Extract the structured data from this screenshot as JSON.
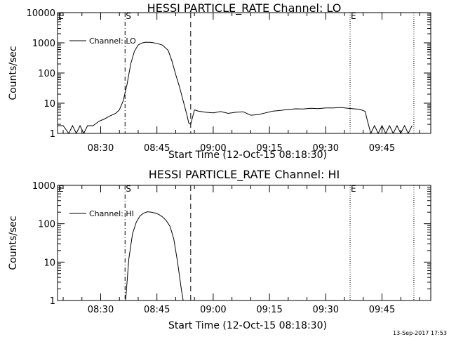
{
  "timestamp": "13-Sep-2017 17:53",
  "chart_data": [
    {
      "type": "line",
      "title": "HESSI PARTICLE_RATE Channel: LO",
      "xlabel": "Start Time (12-Oct-15 08:18:30)",
      "ylabel": "Counts/sec",
      "yscale": "log",
      "ylim": [
        1,
        10000
      ],
      "ytick_labels": [
        "1",
        "10",
        "100",
        "1000",
        "10000"
      ],
      "xlim": [
        "08:18:30",
        "09:58:00"
      ],
      "xtick_labels": [
        "08:30",
        "08:45",
        "09:00",
        "09:15",
        "09:30",
        "09:45"
      ],
      "legend": {
        "entry": "Channel: LO",
        "position": "top-left"
      },
      "markers": [
        {
          "time": "08:18:30",
          "label": "E",
          "style": "solid"
        },
        {
          "time": "08:36:30",
          "label": "S",
          "style": "dashdot"
        },
        {
          "time": "08:54:00",
          "label": "",
          "style": "dashed"
        },
        {
          "time": "09:36:30",
          "label": "E",
          "style": "dotted"
        },
        {
          "time": "09:53:30",
          "label": "",
          "style": "dotted"
        }
      ],
      "series": [
        {
          "name": "Channel: LO",
          "x": [
            "08:18:30",
            "08:20:00",
            "08:21:30",
            "08:22:30",
            "08:23:30",
            "08:24:30",
            "08:25:30",
            "08:26:30",
            "08:28:00",
            "08:29:30",
            "08:31:00",
            "08:32:30",
            "08:34:00",
            "08:35:00",
            "08:36:00",
            "08:37:00",
            "08:38:00",
            "08:39:00",
            "08:40:00",
            "08:41:00",
            "08:42:00",
            "08:43:30",
            "08:45:00",
            "08:46:30",
            "08:48:00",
            "08:49:00",
            "08:50:00",
            "08:51:00",
            "08:52:00",
            "08:53:00",
            "08:53:30",
            "08:54:00",
            "08:55:00",
            "08:56:00",
            "08:58:00",
            "09:00:00",
            "09:02:00",
            "09:04:00",
            "09:06:00",
            "09:08:00",
            "09:10:00",
            "09:12:00",
            "09:14:00",
            "09:16:00",
            "09:18:00",
            "09:20:00",
            "09:22:00",
            "09:24:00",
            "09:26:00",
            "09:28:00",
            "09:30:00",
            "09:32:00",
            "09:34:00",
            "09:36:00",
            "09:37:30",
            "09:39:00",
            "09:40:30",
            "09:41:00",
            "09:42:00",
            "09:43:00",
            "09:44:00",
            "09:45:00",
            "09:46:00",
            "09:47:00",
            "09:48:00",
            "09:49:00",
            "09:50:00",
            "09:51:00",
            "09:52:00",
            "09:53:00"
          ],
          "y": [
            1.8,
            1.8,
            1.0,
            1.8,
            1.0,
            1.8,
            1.0,
            1.8,
            1.8,
            2.5,
            3.0,
            3.8,
            4.6,
            6.0,
            12,
            40,
            200,
            530,
            850,
            990,
            1050,
            1030,
            960,
            840,
            560,
            250,
            90,
            35,
            12,
            4,
            2.2,
            2,
            6,
            5.5,
            5,
            4.8,
            5.3,
            4.6,
            5,
            5.2,
            4,
            4.2,
            4.8,
            5.5,
            5.8,
            6.2,
            6.5,
            6.4,
            6.8,
            6.6,
            7,
            7,
            7.2,
            6.8,
            6.5,
            6.3,
            5.4,
            3,
            1,
            1.8,
            1,
            1.8,
            1,
            1.8,
            1,
            1.8,
            1,
            1.8,
            1,
            1.8
          ]
        }
      ]
    },
    {
      "type": "line",
      "title": "HESSI PARTICLE_RATE Channel: HI",
      "xlabel": "Start Time (12-Oct-15 08:18:30)",
      "ylabel": "Counts/sec",
      "yscale": "log",
      "ylim": [
        1,
        1000
      ],
      "ytick_labels": [
        "1",
        "10",
        "100",
        "1000"
      ],
      "xlim": [
        "08:18:30",
        "09:58:00"
      ],
      "xtick_labels": [
        "08:30",
        "08:45",
        "09:00",
        "09:15",
        "09:30",
        "09:45"
      ],
      "legend": {
        "entry": "Channel: HI",
        "position": "top-left"
      },
      "markers": [
        {
          "time": "08:18:30",
          "label": "E",
          "style": "solid"
        },
        {
          "time": "08:36:30",
          "label": "S",
          "style": "dashdot"
        },
        {
          "time": "08:54:00",
          "label": "",
          "style": "dashed"
        },
        {
          "time": "09:36:30",
          "label": "E",
          "style": "dotted"
        },
        {
          "time": "09:53:30",
          "label": "",
          "style": "dotted"
        }
      ],
      "series": [
        {
          "name": "Channel: HI",
          "x": [
            "08:36:40",
            "08:37:30",
            "08:38:30",
            "08:39:30",
            "08:40:30",
            "08:41:30",
            "08:42:30",
            "08:43:30",
            "08:44:30",
            "08:45:30",
            "08:46:30",
            "08:47:30",
            "08:48:30",
            "08:49:30",
            "08:50:30",
            "08:51:30",
            "08:52:00"
          ],
          "y": [
            1,
            12,
            55,
            110,
            160,
            190,
            205,
            200,
            190,
            175,
            150,
            120,
            85,
            40,
            10,
            2,
            1
          ]
        }
      ]
    }
  ]
}
